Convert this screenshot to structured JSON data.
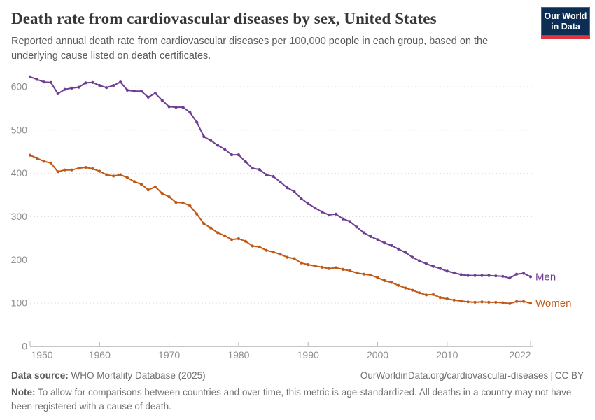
{
  "header": {
    "title": "Death rate from cardiovascular diseases by sex, United States",
    "subtitle": "Reported annual death rate from cardiovascular diseases per 100,000 people in each group, based on the underlying cause listed on death certificates.",
    "logo_line1": "Our World",
    "logo_line2": "in Data"
  },
  "chart_data": {
    "type": "line",
    "title": "Death rate from cardiovascular diseases by sex, United States",
    "xlabel": "",
    "ylabel": "",
    "ylim": [
      0,
      600
    ],
    "yticks": [
      0,
      100,
      200,
      300,
      400,
      500,
      600
    ],
    "xticks": [
      1950,
      1960,
      1970,
      1980,
      1990,
      2000,
      2010,
      2022
    ],
    "grid": "horizontal-dashed",
    "legend_position": "line-end-labels",
    "x": [
      1950,
      1951,
      1952,
      1953,
      1954,
      1955,
      1956,
      1957,
      1958,
      1959,
      1960,
      1961,
      1962,
      1963,
      1964,
      1965,
      1966,
      1967,
      1968,
      1969,
      1970,
      1971,
      1972,
      1973,
      1974,
      1975,
      1976,
      1977,
      1978,
      1979,
      1980,
      1981,
      1982,
      1983,
      1984,
      1985,
      1986,
      1987,
      1988,
      1989,
      1990,
      1991,
      1992,
      1993,
      1994,
      1995,
      1996,
      1997,
      1998,
      1999,
      2000,
      2001,
      2002,
      2003,
      2004,
      2005,
      2006,
      2007,
      2008,
      2009,
      2010,
      2011,
      2012,
      2013,
      2014,
      2015,
      2016,
      2017,
      2018,
      2019,
      2020,
      2021,
      2022
    ],
    "series": [
      {
        "name": "Men",
        "color": "#6d3e91",
        "values": [
          623,
          617,
          611,
          610,
          584,
          594,
          597,
          599,
          609,
          610,
          603,
          598,
          603,
          611,
          592,
          590,
          590,
          576,
          585,
          569,
          554,
          553,
          553,
          541,
          518,
          485,
          476,
          465,
          456,
          443,
          443,
          427,
          412,
          409,
          397,
          393,
          380,
          367,
          358,
          342,
          330,
          320,
          311,
          304,
          306,
          295,
          289,
          276,
          263,
          254,
          247,
          239,
          233,
          225,
          217,
          206,
          198,
          191,
          185,
          180,
          174,
          170,
          166,
          164,
          164,
          164,
          164,
          163,
          162,
          158,
          167,
          169,
          161
        ]
      },
      {
        "name": "Women",
        "color": "#c05917",
        "values": [
          442,
          435,
          428,
          424,
          404,
          408,
          408,
          412,
          414,
          411,
          405,
          397,
          394,
          397,
          390,
          381,
          375,
          362,
          369,
          354,
          346,
          333,
          332,
          325,
          306,
          284,
          274,
          263,
          256,
          247,
          249,
          243,
          232,
          230,
          222,
          218,
          213,
          206,
          203,
          193,
          189,
          186,
          183,
          180,
          182,
          178,
          175,
          170,
          167,
          165,
          159,
          152,
          148,
          141,
          135,
          130,
          124,
          119,
          120,
          113,
          110,
          107,
          105,
          103,
          102,
          103,
          102,
          102,
          101,
          99,
          104,
          104,
          100
        ]
      }
    ],
    "axis_color": "#8e8e8e",
    "grid_color": "#dcdcdc",
    "tick_label_color": "#8e8e8e"
  },
  "footer": {
    "datasource_label": "Data source:",
    "datasource_value": " WHO Mortality Database (2025)",
    "link": "OurWorldinData.org/cardiovascular-diseases",
    "separator": "|",
    "license": "CC BY",
    "note_label": "Note:",
    "note_value": " To allow for comparisons between countries and over time, this metric is age-standardized. All deaths in a country may not have been registered with a cause of death."
  }
}
